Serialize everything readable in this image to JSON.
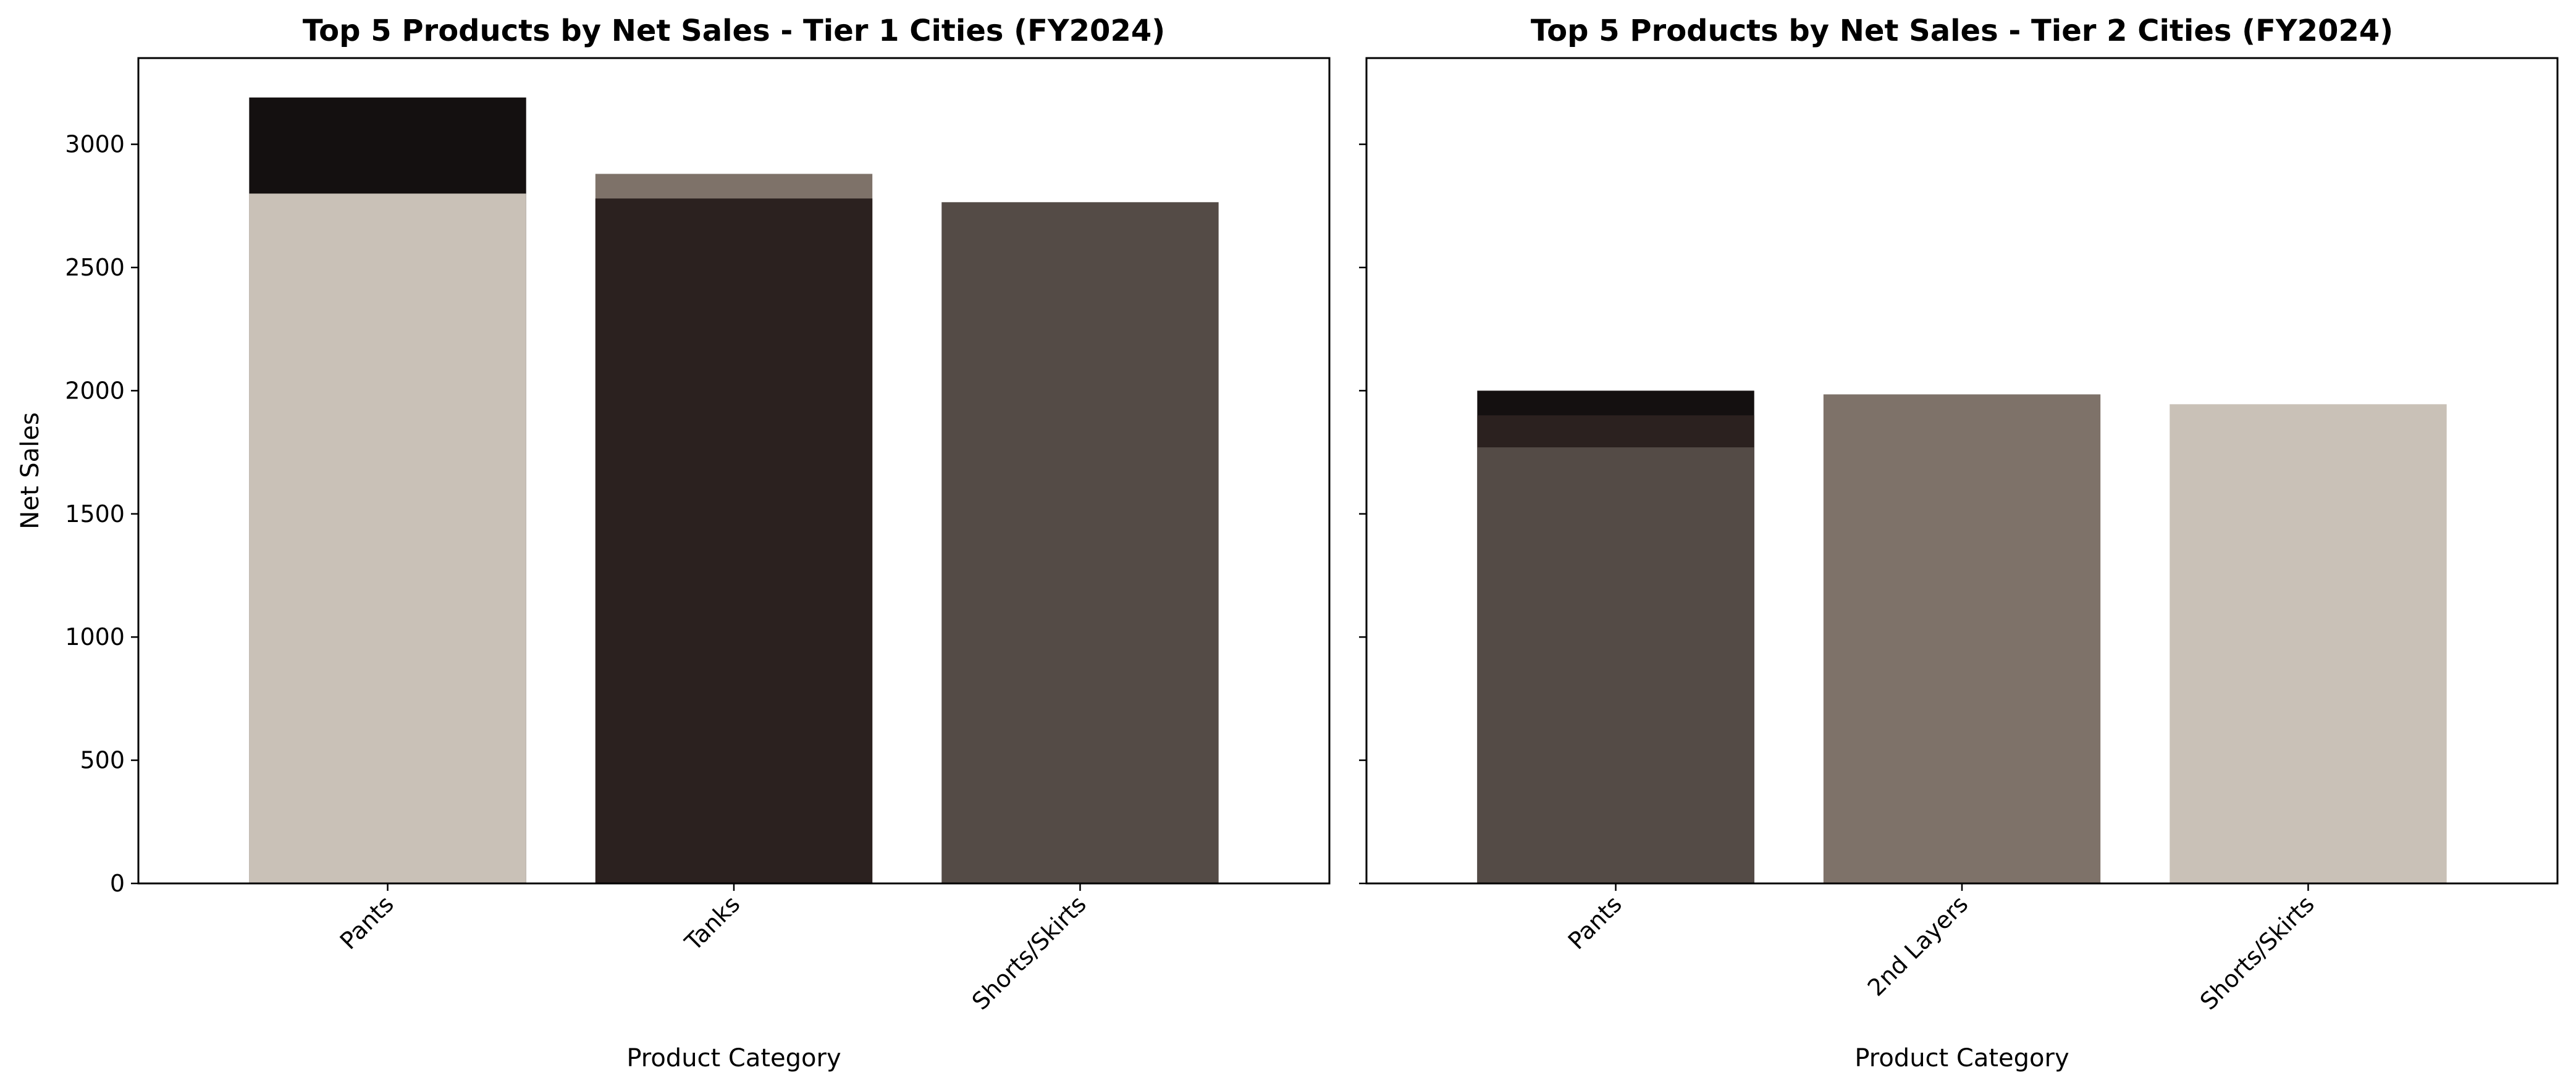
{
  "chart_data": [
    {
      "type": "bar",
      "title": "Top 5 Products by Net Sales - Tier 1 Cities (FY2024)",
      "xlabel": "Product Category",
      "ylabel": "Net Sales",
      "ylim": [
        0,
        3350
      ],
      "yticks": [
        0,
        500,
        1000,
        1500,
        2000,
        2500,
        3000
      ],
      "ytick_labels_visible": true,
      "categories": [
        "Pants",
        "Tanks",
        "Shorts/Skirts"
      ],
      "bars": [
        {
          "category": "Pants",
          "value": 3190,
          "color": "#141010"
        },
        {
          "category": "Pants",
          "value": 2800,
          "color": "#c9c1b7"
        },
        {
          "category": "Tanks",
          "value": 2880,
          "color": "#7e7269"
        },
        {
          "category": "Tanks",
          "value": 2780,
          "color": "#2b211f"
        },
        {
          "category": "Shorts/Skirts",
          "value": 2765,
          "color": "#544b46"
        }
      ],
      "grid": false
    },
    {
      "type": "bar",
      "title": "Top 5 Products by Net Sales - Tier 2 Cities (FY2024)",
      "xlabel": "Product Category",
      "ylabel": "",
      "ylim": [
        0,
        3350
      ],
      "yticks": [
        0,
        500,
        1000,
        1500,
        2000,
        2500,
        3000
      ],
      "ytick_labels_visible": false,
      "categories": [
        "Pants",
        "2nd Layers",
        "Shorts/Skirts"
      ],
      "bars": [
        {
          "category": "Pants",
          "value": 2000,
          "color": "#141010"
        },
        {
          "category": "Pants",
          "value": 1900,
          "color": "#2b211f"
        },
        {
          "category": "Pants",
          "value": 1770,
          "color": "#544b46"
        },
        {
          "category": "2nd Layers",
          "value": 1985,
          "color": "#7e7269"
        },
        {
          "category": "Shorts/Skirts",
          "value": 1945,
          "color": "#c9c1b7"
        }
      ],
      "grid": false
    }
  ]
}
